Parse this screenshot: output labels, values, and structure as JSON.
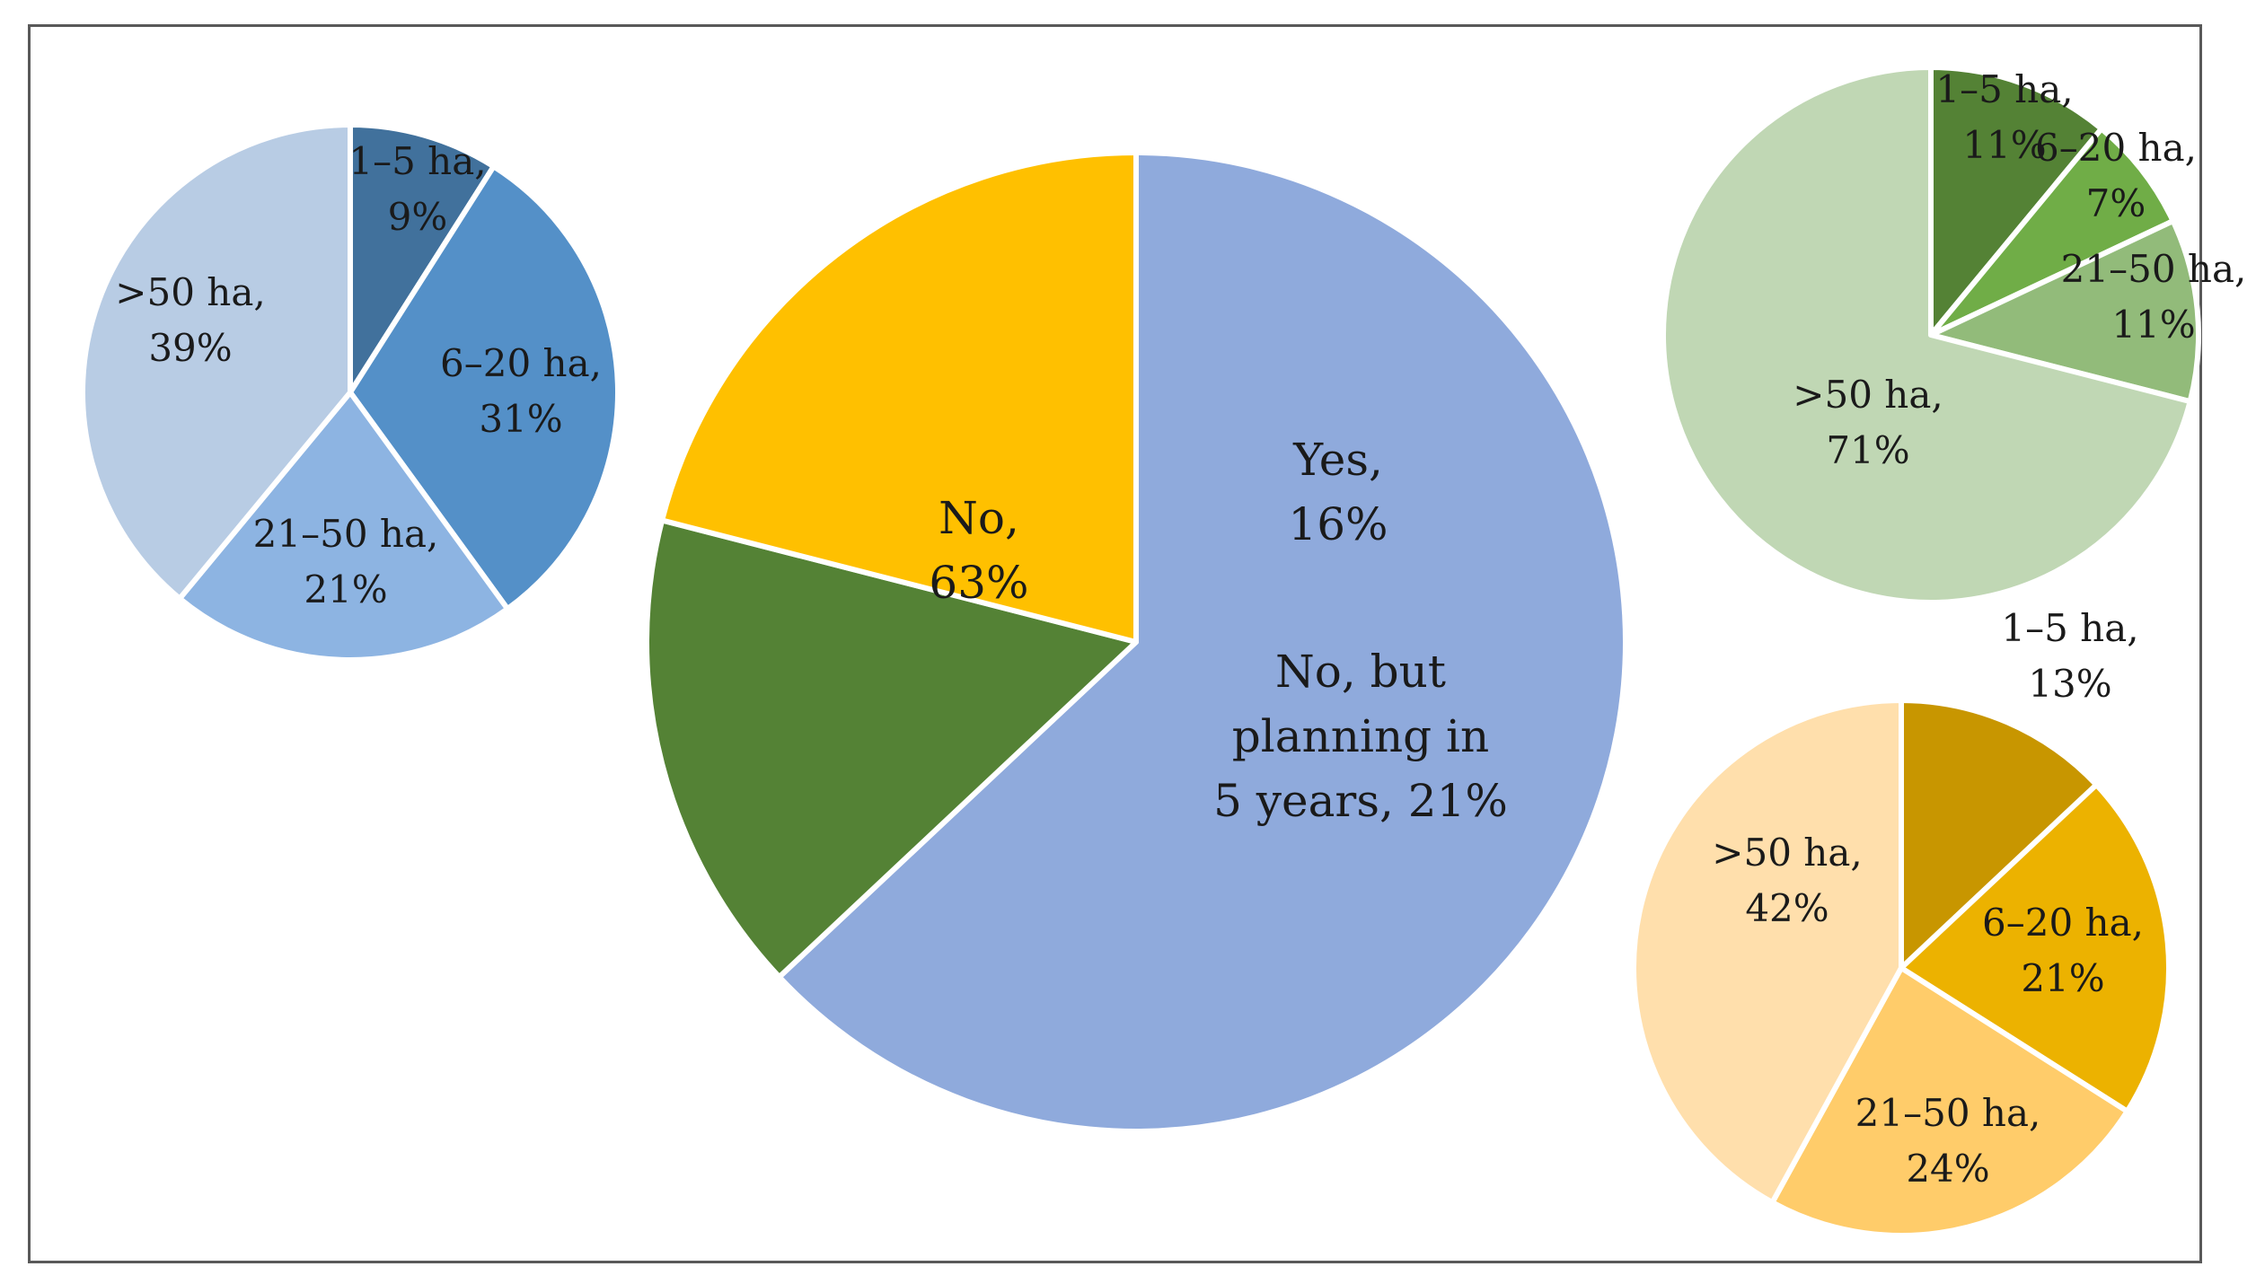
{
  "chart_data": [
    {
      "type": "pie",
      "title": "",
      "colors": [
        "#8faadc",
        "#548235",
        "#ffc000"
      ],
      "slices": [
        {
          "label": "No",
          "value": 63,
          "display": "No, 63%",
          "lines": [
            "No,",
            "63%"
          ]
        },
        {
          "label": "Yes",
          "value": 16,
          "display": "Yes, 16%",
          "lines": [
            "Yes,",
            "16%"
          ]
        },
        {
          "label": "No, but planning in 5 years",
          "value": 21,
          "display": "No, but planning in 5 years, 21%",
          "lines": [
            "No, but",
            "planning in",
            "5 years, 21%"
          ]
        }
      ]
    },
    {
      "type": "pie",
      "title": "",
      "colors": [
        "#41719c",
        "#5490c8",
        "#8db4e2",
        "#b8cce4"
      ],
      "slices": [
        {
          "label": "1–5 ha",
          "value": 9,
          "display": "1–5 ha, 9%",
          "lines": [
            "1–5 ha,",
            "9%"
          ]
        },
        {
          "label": "6–20 ha",
          "value": 31,
          "display": "6–20 ha, 31%",
          "lines": [
            "6–20 ha,",
            "31%"
          ]
        },
        {
          "label": "21–50 ha",
          "value": 21,
          "display": "21–50 ha, 21%",
          "lines": [
            "21–50 ha,",
            "21%"
          ]
        },
        {
          "label": ">50 ha",
          "value": 39,
          "display": ">50 ha, 39%",
          "lines": [
            ">50 ha,",
            "39%"
          ]
        }
      ]
    },
    {
      "type": "pie",
      "title": "",
      "colors": [
        "#548235",
        "#70ad47",
        "#92bb7a",
        "#c0d7b4"
      ],
      "slices": [
        {
          "label": "1–5 ha",
          "value": 11,
          "display": "1–5 ha, 11%",
          "lines": [
            "1–5 ha,",
            "11%"
          ]
        },
        {
          "label": "6–20 ha",
          "value": 7,
          "display": "6–20 ha, 7%",
          "lines": [
            "6–20 ha,",
            "7%"
          ]
        },
        {
          "label": "21–50 ha",
          "value": 11,
          "display": "21–50 ha, 11%",
          "lines": [
            "21–50 ha,",
            "11%"
          ]
        },
        {
          "label": ">50 ha",
          "value": 71,
          "display": ">50 ha, 71%",
          "lines": [
            ">50 ha,",
            "71%"
          ]
        }
      ]
    },
    {
      "type": "pie",
      "title": "",
      "colors": [
        "#c89600",
        "#ecb200",
        "#ffcc6a",
        "#ffdfac"
      ],
      "slices": [
        {
          "label": "1–5 ha",
          "value": 13,
          "display": "1–5 ha, 13%",
          "lines": [
            "1–5 ha,",
            "13%"
          ]
        },
        {
          "label": "6–20 ha",
          "value": 21,
          "display": "6–20 ha, 21%",
          "lines": [
            "6–20 ha,",
            "21%"
          ]
        },
        {
          "label": "21–50 ha",
          "value": 24,
          "display": "21–50 ha, 24%",
          "lines": [
            "21–50 ha,",
            "24%"
          ]
        },
        {
          "label": ">50 ha",
          "value": 42,
          "display": ">50 ha, 42%",
          "lines": [
            ">50 ha,",
            "42%"
          ]
        }
      ]
    }
  ]
}
